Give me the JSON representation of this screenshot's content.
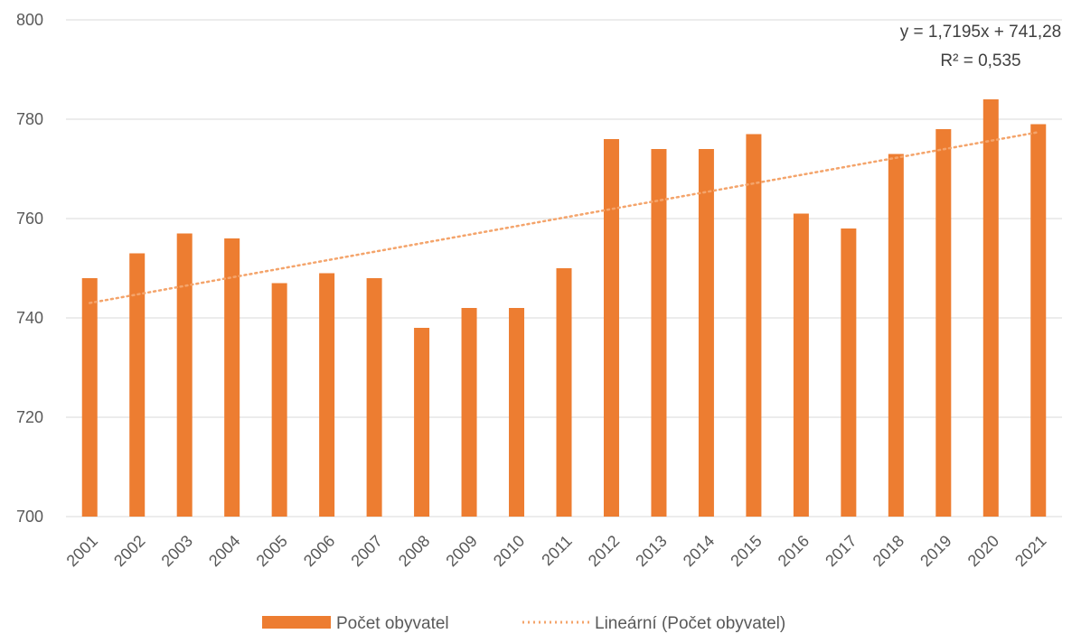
{
  "chart_data": {
    "type": "bar",
    "categories": [
      "2001",
      "2002",
      "2003",
      "2004",
      "2005",
      "2006",
      "2007",
      "2008",
      "2009",
      "2010",
      "2011",
      "2012",
      "2013",
      "2014",
      "2015",
      "2016",
      "2017",
      "2018",
      "2019",
      "2020",
      "2021"
    ],
    "series": [
      {
        "name": "Počet obyvatel",
        "values": [
          748,
          753,
          757,
          756,
          747,
          749,
          748,
          738,
          742,
          742,
          750,
          776,
          774,
          774,
          777,
          761,
          758,
          773,
          778,
          784,
          779
        ],
        "color": "#ed7d31"
      }
    ],
    "trendline": {
      "name": "Lineární (Počet obyvatel)",
      "type": "linear",
      "slope": 1.7195,
      "intercept": 741.28,
      "equation": "y = 1,7195x + 741,28",
      "r_squared": "R² = 0,535",
      "color": "#f4a46b"
    },
    "ylim": [
      700,
      800
    ],
    "yticks": [
      "700",
      "720",
      "740",
      "760",
      "780",
      "800"
    ],
    "grid": true,
    "legend_position": "bottom",
    "title": "",
    "xlabel": "",
    "ylabel": ""
  }
}
